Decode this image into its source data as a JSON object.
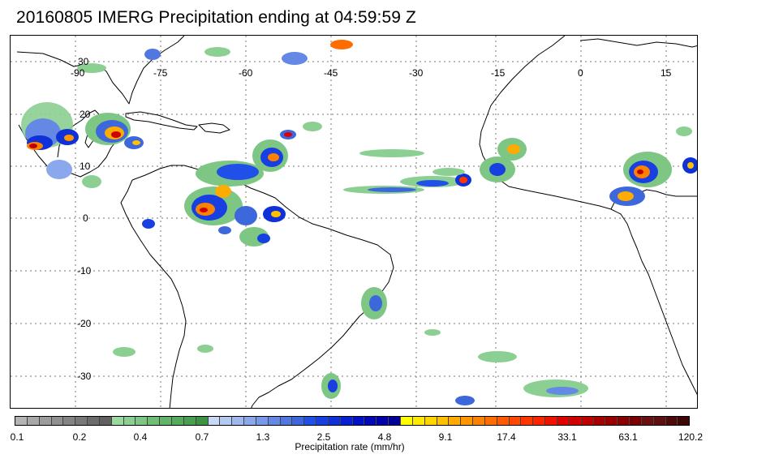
{
  "title": "20160805 IMERG Precipitation ending at 04:59:59 Z",
  "map": {
    "lon_labels": [
      "-90",
      "-75",
      "-60",
      "-45",
      "-30",
      "-15",
      "0",
      "15"
    ],
    "lat_labels": [
      "30",
      "20",
      "10",
      "0",
      "-10",
      "-20",
      "-30"
    ]
  },
  "colorbar": {
    "label": "Precipitation rate (mm/hr)",
    "ticks": [
      "0.1",
      "0.2",
      "0.4",
      "0.7",
      "1.3",
      "2.5",
      "4.8",
      "9.1",
      "17.4",
      "33.1",
      "63.1",
      "120.2"
    ],
    "colors": [
      "#b4b4b4",
      "#a8a8a8",
      "#9c9c9c",
      "#909090",
      "#848484",
      "#787878",
      "#6c6c6c",
      "#606060",
      "#9ad8a0",
      "#8ccf92",
      "#7ec684",
      "#70bd76",
      "#62b468",
      "#55ab5b",
      "#489f4e",
      "#3c9342",
      "#c8d8f8",
      "#b4c8f4",
      "#a0b8f0",
      "#8ca8ec",
      "#7898e8",
      "#6488e4",
      "#5078e0",
      "#3c68dc",
      "#2050e8",
      "#1840e0",
      "#1030d8",
      "#0820d0",
      "#0010c8",
      "#0008b8",
      "#0000a8",
      "#000098",
      "#ffff00",
      "#ffea00",
      "#ffd500",
      "#ffc000",
      "#ffab00",
      "#ff9600",
      "#ff8100",
      "#ff6c00",
      "#ff5a00",
      "#ff4800",
      "#ff3600",
      "#ff2400",
      "#f01200",
      "#e00000",
      "#d00000",
      "#c00000",
      "#a80000",
      "#980000",
      "#880000",
      "#780000",
      "#6a1010",
      "#5c1010",
      "#4e0a0a",
      "#400505"
    ]
  }
}
